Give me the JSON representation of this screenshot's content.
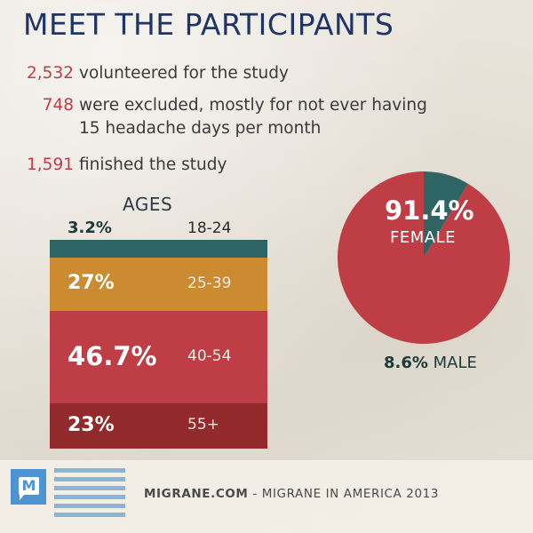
{
  "title": "MEET THE PARTICIPANTS",
  "stats": {
    "volunteered": {
      "number": "2,532",
      "text": "volunteered for the study"
    },
    "excluded": {
      "number": "748",
      "line1": "were excluded, mostly for not ever having",
      "line2": "15 headache days per month"
    },
    "finished": {
      "number": "1,591",
      "text": "finished the study"
    }
  },
  "chart_data": [
    {
      "type": "bar",
      "title": "AGES",
      "orientation": "stacked-horizontal-bands",
      "categories": [
        "18-24",
        "25-39",
        "40-54",
        "55+"
      ],
      "values": [
        3.2,
        27,
        46.7,
        23
      ],
      "value_labels": [
        "3.2%",
        "27%",
        "46.7%",
        "23%"
      ],
      "unit": "%",
      "colors": [
        "#2f6464",
        "#cc8a31",
        "#bf3e45",
        "#922a2c"
      ]
    },
    {
      "type": "pie",
      "slices": [
        {
          "label": "FEMALE",
          "value": 91.4,
          "value_label": "91.4%",
          "color": "#bf3e45"
        },
        {
          "label": "MALE",
          "value": 8.6,
          "value_label": "8.6%",
          "color": "#2f6464"
        }
      ]
    }
  ],
  "footer": {
    "logo_letter": "M",
    "site": "MIGRANE.COM",
    "rest": " - MIGRANE IN AMERICA 2013"
  },
  "colors": {
    "title": "#1f3566",
    "accent_red": "#bf3e45",
    "logo_blue": "#4e93d2"
  }
}
